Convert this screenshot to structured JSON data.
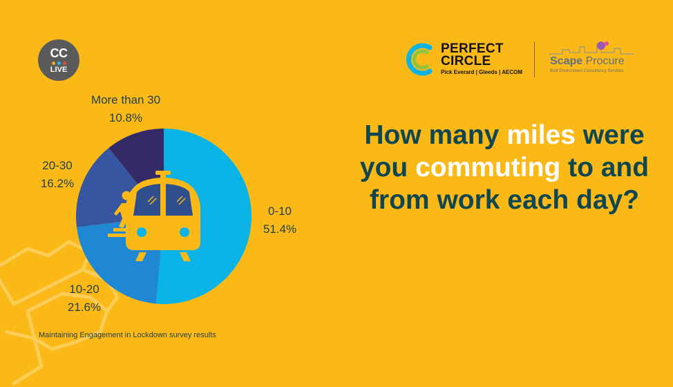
{
  "badge": {
    "top": "CC",
    "bottom": "LIVE"
  },
  "logos": {
    "perfect_circle": {
      "line1": "PERFECT",
      "line2": "CIRCLE",
      "sub": "Pick Everard | Gleeds | AECOM"
    },
    "scape": {
      "name_bold": "Scape",
      "name_light": " Procure",
      "sub": "Built Environment Consultancy Services"
    }
  },
  "question": {
    "parts": [
      {
        "text": "How many ",
        "highlight": false
      },
      {
        "text": "miles",
        "highlight": true
      },
      {
        "text": " were you ",
        "highlight": false
      },
      {
        "text": "commuting",
        "highlight": true
      },
      {
        "text": " to and from work each day?",
        "highlight": false
      }
    ]
  },
  "caption": "Maintaining Engagement in Lockdown survey results",
  "colors": {
    "background": "#FBB917",
    "text_dark": "#0F4650",
    "highlight": "#FFFFFF"
  },
  "chart_data": {
    "type": "pie",
    "title": "",
    "slices": [
      {
        "label": "0-10",
        "value": 51.4,
        "value_label": "51.4%",
        "color": "#0AB3E6"
      },
      {
        "label": "10-20",
        "value": 21.6,
        "value_label": "21.6%",
        "color": "#1E88D4"
      },
      {
        "label": "20-30",
        "value": 16.2,
        "value_label": "16.2%",
        "color": "#3656A2"
      },
      {
        "label": "More than 30",
        "value": 10.8,
        "value_label": "10.8%",
        "color": "#352A68"
      }
    ]
  }
}
